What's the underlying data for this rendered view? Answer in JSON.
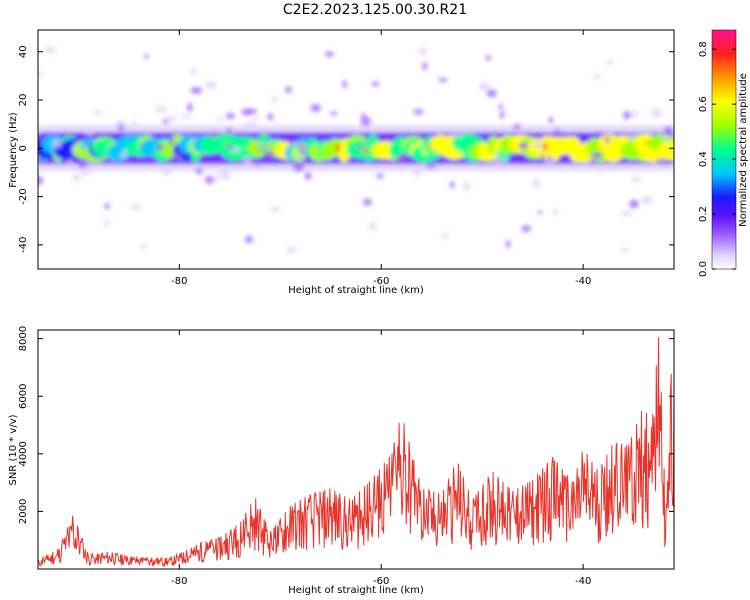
{
  "title": "C2E2.2023.125.00.30.R21",
  "colors": {
    "snr_line": "#e8332b",
    "colorbar_stops": [
      "#ffffff",
      "#ddd0ff",
      "#a060ff",
      "#6010ff",
      "#1a1aff",
      "#00c8ff",
      "#00ff90",
      "#a0ff00",
      "#ffff00",
      "#ff9900",
      "#ff2020",
      "#ff1090"
    ]
  },
  "chart_data": [
    {
      "type": "heatmap",
      "description_of_mark": "spectrogram",
      "xlabel": "Height of straight line (km)",
      "ylabel": "Frequency (Hz)",
      "xlim": [
        -94,
        -31
      ],
      "ylim": [
        -50,
        49
      ],
      "xticks": [
        -80,
        -60,
        -40
      ],
      "yticks": [
        -40,
        -20,
        0,
        20,
        40
      ],
      "band_center_hz": 0,
      "band_halfwidth_hz": 5,
      "colorbar": {
        "label": "Normalized spectral amplitude",
        "range": [
          0,
          0.87
        ],
        "ticks": [
          0.0,
          0.2,
          0.4,
          0.6,
          0.8
        ]
      },
      "grid": false
    },
    {
      "type": "line",
      "xlabel": "Height of straight line (km)",
      "ylabel": "SNR (10 * v/v)",
      "xlim": [
        -94,
        -31
      ],
      "ylim": [
        0,
        8300
      ],
      "xticks": [
        -80,
        -60,
        -40
      ],
      "yticks": [
        2000,
        4000,
        6000,
        8000
      ],
      "grid": false,
      "series": [
        {
          "x": [
            -94,
            -92,
            -90.5,
            -89,
            -87,
            -85,
            -83,
            -81,
            -79,
            -78,
            -76,
            -74,
            -72.5,
            -71,
            -69,
            -67,
            -65,
            -63,
            -61,
            -59,
            -58,
            -56,
            -54,
            -52.5,
            -51,
            -49,
            -47,
            -45,
            -43,
            -41,
            -40,
            -38.5,
            -37,
            -35.5,
            -34,
            -33.2,
            -32.5,
            -31.8,
            -31.3,
            -31
          ],
          "values": [
            300,
            700,
            1900,
            500,
            600,
            450,
            400,
            380,
            700,
            900,
            1100,
            1600,
            2500,
            1300,
            2200,
            2600,
            2800,
            2400,
            3100,
            4000,
            5400,
            2800,
            2600,
            3800,
            2400,
            3400,
            2700,
            3100,
            3900,
            3000,
            4200,
            3400,
            4400,
            4300,
            5700,
            4900,
            8300,
            2000,
            6800,
            6500
          ]
        }
      ]
    }
  ]
}
